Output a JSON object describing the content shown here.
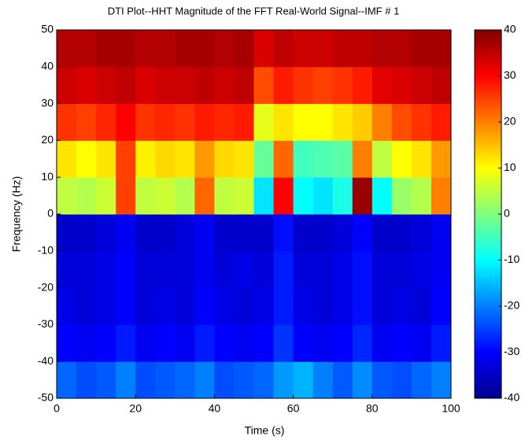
{
  "chart_data": {
    "type": "heatmap",
    "title": "DTI Plot--HHT Magnitude of the FFT Real-World Signal--IMF # 1",
    "x_label": "Time (s)",
    "y_label": "Frequency (Hz)",
    "xlim": [
      0,
      100
    ],
    "xticks": [
      0,
      20,
      40,
      60,
      80,
      100
    ],
    "ylim": [
      -50,
      50
    ],
    "yticks": [
      -50,
      -40,
      -30,
      -20,
      -10,
      0,
      10,
      20,
      30,
      40,
      50
    ],
    "clim": [
      -40,
      40
    ],
    "cticks": [
      -40,
      -30,
      -20,
      -10,
      0,
      10,
      20,
      30,
      40
    ],
    "colormap": "jet",
    "x_edges": [
      0,
      5,
      10,
      15,
      20,
      25,
      30,
      35,
      40,
      45,
      50,
      55,
      60,
      65,
      70,
      75,
      80,
      85,
      90,
      95,
      100
    ],
    "y_edges": [
      -50,
      -40,
      -30,
      -20,
      -10,
      0,
      10,
      20,
      30,
      40,
      50
    ],
    "z": [
      [
        -22,
        -24,
        -23,
        -20,
        -24,
        -23,
        -22,
        -20,
        -24,
        -23,
        -22,
        -18,
        -16,
        -20,
        -23,
        -19,
        -23,
        -24,
        -22,
        -20
      ],
      [
        -30,
        -31,
        -30,
        -28,
        -31,
        -30,
        -31,
        -28,
        -30,
        -31,
        -30,
        -26,
        -30,
        -31,
        -30,
        -27,
        -31,
        -30,
        -31,
        -28
      ],
      [
        -32,
        -33,
        -32,
        -30,
        -33,
        -32,
        -33,
        -30,
        -32,
        -33,
        -32,
        -28,
        -32,
        -33,
        -32,
        -29,
        -33,
        -32,
        -33,
        -30
      ],
      [
        -33,
        -33,
        -32,
        -30,
        -33,
        -33,
        -33,
        -31,
        -33,
        -32,
        -33,
        -28,
        -33,
        -33,
        -32,
        -29,
        -33,
        -33,
        -32,
        -31
      ],
      [
        -34,
        -34,
        -33,
        -31,
        -34,
        -34,
        -33,
        -31,
        -34,
        -34,
        -34,
        -29,
        -34,
        -34,
        -33,
        -30,
        -34,
        -34,
        -33,
        -31
      ],
      [
        5,
        4,
        6,
        25,
        5,
        6,
        4,
        22,
        5,
        6,
        -12,
        30,
        -10,
        -12,
        -8,
        38,
        -10,
        2,
        4,
        20
      ],
      [
        12,
        10,
        12,
        25,
        11,
        13,
        12,
        18,
        13,
        12,
        -2,
        22,
        -5,
        -4,
        -3,
        20,
        5,
        10,
        12,
        18
      ],
      [
        26,
        25,
        27,
        30,
        26,
        27,
        26,
        28,
        27,
        28,
        8,
        12,
        10,
        10,
        12,
        14,
        20,
        24,
        26,
        28
      ],
      [
        34,
        33,
        34,
        35,
        33,
        34,
        34,
        35,
        34,
        35,
        24,
        28,
        26,
        25,
        26,
        28,
        32,
        33,
        34,
        35
      ],
      [
        36,
        36,
        37,
        37,
        36,
        36,
        37,
        37,
        36,
        37,
        33,
        35,
        34,
        34,
        35,
        35,
        36,
        36,
        37,
        37
      ]
    ]
  }
}
